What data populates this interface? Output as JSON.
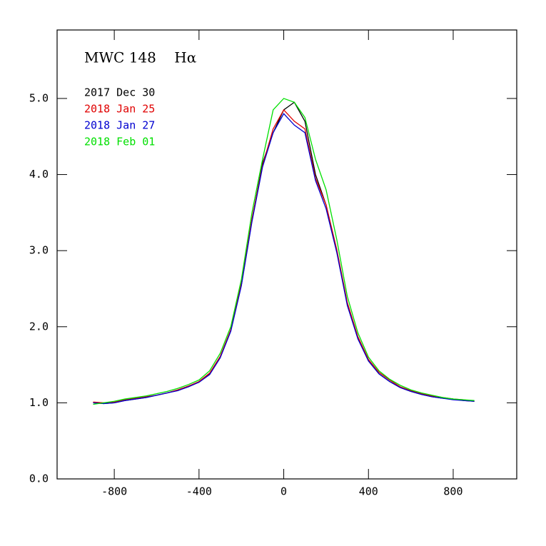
{
  "chart_data": {
    "type": "line",
    "title": "MWC 148    Hα",
    "x": [
      -900,
      -850,
      -800,
      -750,
      -700,
      -650,
      -600,
      -550,
      -500,
      -450,
      -400,
      -350,
      -300,
      -250,
      -200,
      -150,
      -100,
      -50,
      0,
      50,
      100,
      150,
      200,
      250,
      300,
      350,
      400,
      450,
      500,
      550,
      600,
      650,
      700,
      750,
      800,
      850,
      900
    ],
    "series": [
      {
        "name": "2017 Dec 30",
        "color": "#000000",
        "values": [
          1.0,
          0.99,
          1.0,
          1.03,
          1.05,
          1.07,
          1.1,
          1.13,
          1.17,
          1.22,
          1.27,
          1.38,
          1.6,
          1.95,
          2.55,
          3.4,
          4.15,
          4.55,
          4.85,
          4.95,
          4.7,
          4.0,
          3.6,
          3.0,
          2.3,
          1.85,
          1.55,
          1.38,
          1.28,
          1.2,
          1.15,
          1.11,
          1.08,
          1.06,
          1.05,
          1.03,
          1.02
        ]
      },
      {
        "name": "2018 Jan 25",
        "color": "#e00000",
        "values": [
          1.01,
          1.0,
          1.01,
          1.04,
          1.06,
          1.08,
          1.1,
          1.13,
          1.17,
          1.22,
          1.28,
          1.39,
          1.61,
          1.96,
          2.57,
          3.42,
          4.12,
          4.6,
          4.85,
          4.7,
          4.6,
          3.95,
          3.6,
          3.02,
          2.32,
          1.87,
          1.57,
          1.4,
          1.3,
          1.21,
          1.16,
          1.12,
          1.09,
          1.07,
          1.05,
          1.04,
          1.02
        ]
      },
      {
        "name": "2018 Jan 27",
        "color": "#0000d0",
        "values": [
          1.0,
          0.99,
          1.0,
          1.03,
          1.05,
          1.07,
          1.1,
          1.13,
          1.16,
          1.21,
          1.27,
          1.37,
          1.59,
          1.94,
          2.54,
          3.38,
          4.1,
          4.55,
          4.8,
          4.65,
          4.55,
          3.92,
          3.55,
          2.98,
          2.28,
          1.84,
          1.55,
          1.38,
          1.28,
          1.2,
          1.15,
          1.11,
          1.08,
          1.06,
          1.04,
          1.03,
          1.02
        ]
      },
      {
        "name": "2018 Feb 01",
        "color": "#00e000",
        "values": [
          0.98,
          1.0,
          1.02,
          1.05,
          1.07,
          1.09,
          1.12,
          1.15,
          1.19,
          1.24,
          1.3,
          1.42,
          1.65,
          2.0,
          2.62,
          3.5,
          4.2,
          4.85,
          5.0,
          4.95,
          4.75,
          4.2,
          3.8,
          3.15,
          2.4,
          1.92,
          1.6,
          1.42,
          1.31,
          1.23,
          1.17,
          1.13,
          1.1,
          1.07,
          1.05,
          1.04,
          1.03
        ]
      }
    ],
    "xlim": [
      -1070,
      1100
    ],
    "ylim": [
      0,
      5.9
    ],
    "xticks": [
      -800,
      -400,
      0,
      400,
      800
    ],
    "yticks": [
      {
        "value": 0,
        "label": "0.0"
      },
      {
        "value": 1,
        "label": "1.0"
      },
      {
        "value": 2,
        "label": "2.0"
      },
      {
        "value": 3,
        "label": "3.0"
      },
      {
        "value": 4,
        "label": "4.0"
      },
      {
        "value": 5,
        "label": "5.0"
      }
    ]
  }
}
